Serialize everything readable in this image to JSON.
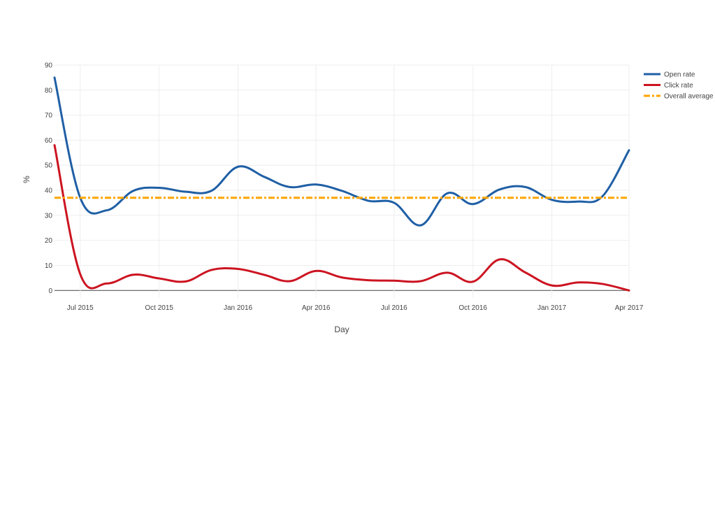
{
  "chart_data": {
    "type": "line",
    "title": "",
    "xlabel": "Day",
    "ylabel": "%",
    "ylim": [
      -3,
      90
    ],
    "xlim": [
      "2015-06-01",
      "2017-04-01"
    ],
    "yticks": [
      0,
      10,
      20,
      30,
      40,
      50,
      60,
      70,
      80,
      90
    ],
    "xticks": [
      {
        "date": "2015-07-01",
        "label": "Jul 2015"
      },
      {
        "date": "2015-10-01",
        "label": "Oct 2015"
      },
      {
        "date": "2016-01-01",
        "label": "Jan 2016"
      },
      {
        "date": "2016-04-01",
        "label": "Apr 2016"
      },
      {
        "date": "2016-07-01",
        "label": "Jul 2016"
      },
      {
        "date": "2016-10-01",
        "label": "Oct 2016"
      },
      {
        "date": "2017-01-01",
        "label": "Jan 2017"
      },
      {
        "date": "2017-04-01",
        "label": "Apr 2017"
      }
    ],
    "x": [
      "2015-06-01",
      "2015-07-01",
      "2015-08-01",
      "2015-09-01",
      "2015-10-01",
      "2015-11-01",
      "2015-12-01",
      "2016-01-01",
      "2016-02-01",
      "2016-03-01",
      "2016-04-01",
      "2016-05-01",
      "2016-06-01",
      "2016-07-01",
      "2016-08-01",
      "2016-09-01",
      "2016-10-01",
      "2016-11-01",
      "2016-12-01",
      "2017-01-01",
      "2017-02-01",
      "2017-03-01",
      "2017-04-01"
    ],
    "series": [
      {
        "name": "Open rate",
        "color": "#1f5fa5",
        "dash": "solid",
        "values": [
          85,
          37,
          32,
          39.8,
          41,
          39.4,
          39.8,
          49.4,
          45.3,
          41.3,
          42.3,
          39.8,
          35.8,
          35,
          26,
          38.8,
          34.5,
          40.3,
          41.3,
          36.2,
          35.5,
          37.6,
          56
        ]
      },
      {
        "name": "Click rate",
        "color": "#cc1421",
        "dash": "solid",
        "values": [
          58,
          6.5,
          2.8,
          6.3,
          4.8,
          3.6,
          8.2,
          8.6,
          6.2,
          3.7,
          7.8,
          5.2,
          4.1,
          3.9,
          3.7,
          7.1,
          3.5,
          12.4,
          7.2,
          2,
          3.2,
          2.6,
          0
        ]
      },
      {
        "name": "Overall average",
        "color": "#ffa500",
        "dash": "dashdot",
        "constant": 37
      }
    ],
    "legend_position": "top-right",
    "grid": true
  }
}
